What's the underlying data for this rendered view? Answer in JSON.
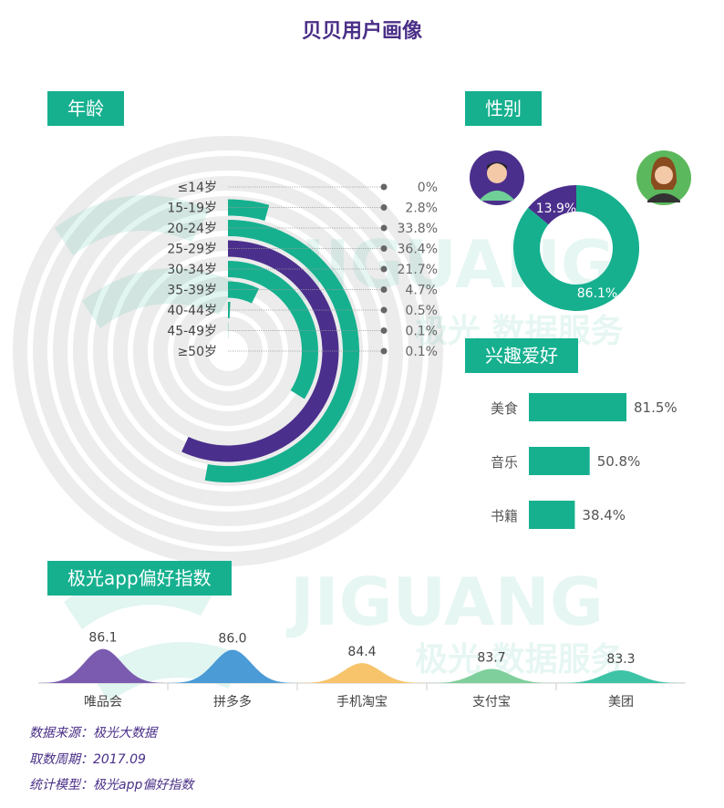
{
  "page_title": "贝贝用户画像",
  "watermark": {
    "brand": "JIGUANG",
    "subtitle": "极光 数据服务"
  },
  "sections": {
    "age": "年龄",
    "gender": "性别",
    "interest": "兴趣爱好",
    "app_index": "极光app偏好指数"
  },
  "colors": {
    "teal": "#16b08f",
    "purple": "#4b2f8c",
    "ring": "#ececec"
  },
  "chart_data": [
    {
      "id": "age",
      "type": "bar",
      "layout": "radial",
      "categories": [
        "≤14岁",
        "15-19岁",
        "20-24岁",
        "25-29岁",
        "30-34岁",
        "35-39岁",
        "40-44岁",
        "45-49岁",
        "≥50岁"
      ],
      "values": [
        0,
        2.8,
        33.8,
        36.4,
        21.7,
        4.7,
        0.5,
        0.1,
        0.1
      ],
      "labels": [
        "0%",
        "2.8%",
        "33.8%",
        "36.4%",
        "21.7%",
        "4.7%",
        "0.5%",
        "0.1%",
        "0.1%"
      ],
      "bar_colors": [
        "#16b08f",
        "#16b08f",
        "#16b08f",
        "#4b2f8c",
        "#16b08f",
        "#16b08f",
        "#16b08f",
        "#16b08f",
        "#16b08f"
      ]
    },
    {
      "id": "gender",
      "type": "pie",
      "style": "donut",
      "slices": [
        {
          "icon": "male-avatar-icon",
          "value": 13.9,
          "label": "13.9%",
          "color": "#4b2f8c"
        },
        {
          "icon": "female-avatar-icon",
          "value": 86.1,
          "label": "86.1%",
          "color": "#16b08f"
        }
      ]
    },
    {
      "id": "interest",
      "type": "bar",
      "orientation": "horizontal",
      "categories": [
        "美食",
        "音乐",
        "书籍"
      ],
      "values": [
        81.5,
        50.8,
        38.4
      ],
      "labels": [
        "81.5%",
        "50.8%",
        "38.4%"
      ],
      "color": "#16b08f"
    },
    {
      "id": "app_index",
      "type": "area",
      "style": "bell",
      "categories": [
        "唯品会",
        "拼多多",
        "手机淘宝",
        "支付宝",
        "美团"
      ],
      "values": [
        86.1,
        86.0,
        84.4,
        83.7,
        83.3
      ],
      "labels": [
        "86.1",
        "86.0",
        "84.4",
        "83.7",
        "83.3"
      ],
      "colors": [
        "#7b5bb0",
        "#4a9bd6",
        "#f7c46b",
        "#7ecf9b",
        "#3fc3a6"
      ]
    }
  ],
  "footer": {
    "source": "数据来源：极光大数据",
    "period": "取数周期：2017.09",
    "model": "统计模型：极光app偏好指数"
  }
}
